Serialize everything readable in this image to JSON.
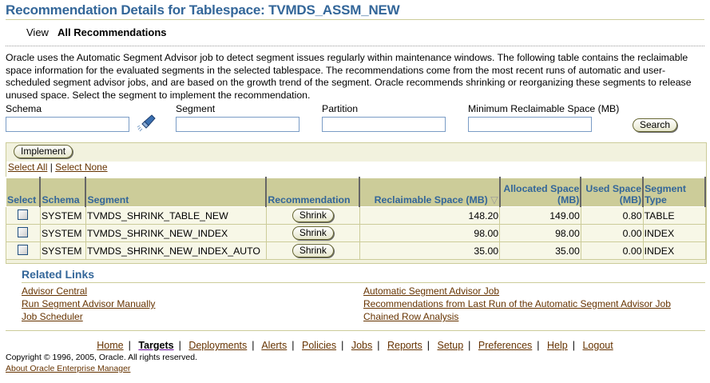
{
  "page": {
    "title": "Recommendation Details for Tablespace: TVMDS_ASSM_NEW",
    "view_label": "View",
    "view_value": "All Recommendations",
    "description": "Oracle uses the Automatic Segment Advisor job to detect segment issues regularly within maintenance windows. The following table contains the reclaimable space information for the evaluated segments in the selected tablespace. The recommendations come from the most recent runs of automatic and user-scheduled segment advisor jobs, and are based on the growth trend of the segment. Oracle recommends shrinking or reorganizing these segments to release unused space. Select the segment to implement the recommendation."
  },
  "search": {
    "schema_label": "Schema",
    "schema_value": "",
    "segment_label": "Segment",
    "segment_value": "",
    "partition_label": "Partition",
    "partition_value": "",
    "min_label": "Minimum Reclaimable Space (MB)",
    "min_value": "",
    "button": "Search",
    "flashlight_icon": "flashlight-icon"
  },
  "table": {
    "implement": "Implement",
    "select_all": "Select All",
    "select_none": "Select None",
    "headers": [
      "Select",
      "Schema",
      "Segment",
      "Recommendation",
      "Reclaimable Space (MB)",
      "Allocated Space (MB)",
      "Used Space (MB)",
      "Segment Type"
    ],
    "sort_icon": "sort-descending-icon",
    "rows": [
      {
        "schema": "SYSTEM",
        "segment": "TVMDS_SHRINK_TABLE_NEW",
        "action": "Shrink",
        "reclaimable": "148.20",
        "allocated": "149.00",
        "used": "0.80",
        "type": "TABLE"
      },
      {
        "schema": "SYSTEM",
        "segment": "TVMDS_SHRINK_NEW_INDEX",
        "action": "Shrink",
        "reclaimable": "98.00",
        "allocated": "98.00",
        "used": "0.00",
        "type": "INDEX"
      },
      {
        "schema": "SYSTEM",
        "segment": "TVMDS_SHRINK_NEW_INDEX_AUTO",
        "action": "Shrink",
        "reclaimable": "35.00",
        "allocated": "35.00",
        "used": "0.00",
        "type": "INDEX"
      }
    ]
  },
  "related": {
    "title": "Related Links",
    "left": [
      "Advisor Central",
      "Run Segment Advisor Manually",
      "Job Scheduler"
    ],
    "right": [
      "Automatic Segment Advisor Job",
      "Recommendations from Last Run of the Automatic Segment Advisor Job",
      "Chained Row Analysis"
    ]
  },
  "footer": {
    "nav": [
      "Home",
      "Targets",
      "Deployments",
      "Alerts",
      "Policies",
      "Jobs",
      "Reports",
      "Setup",
      "Preferences",
      "Help",
      "Logout"
    ],
    "active": "Targets",
    "copyright": "Copyright © 1996, 2005, Oracle. All rights reserved.",
    "about": "About Oracle Enterprise Manager"
  },
  "colors": {
    "heading": "#336699",
    "link": "#663300",
    "header_bg": "#cccc99",
    "row_bg": "#f7f7e7"
  }
}
